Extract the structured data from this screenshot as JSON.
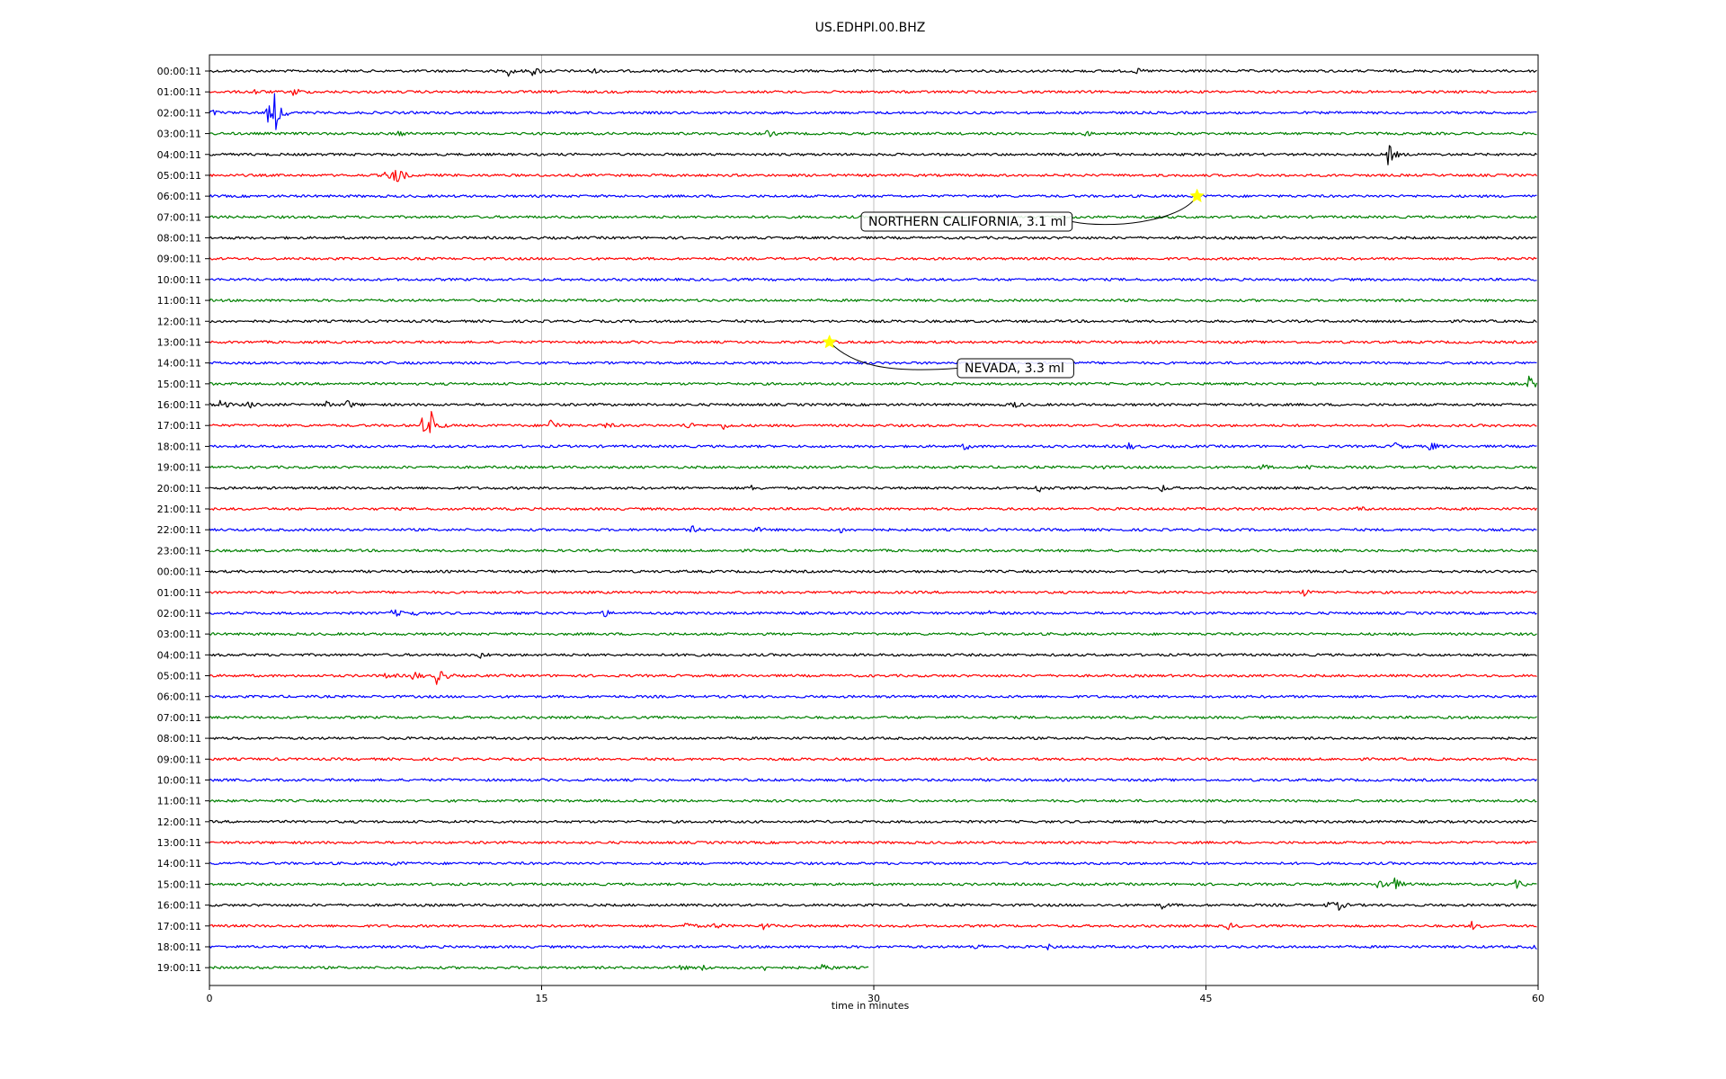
{
  "chart_data": {
    "type": "line",
    "title": "US.EDHPI.00.BHZ",
    "xlabel": "time in minutes",
    "xlim": [
      0,
      60
    ],
    "x_ticks": [
      0,
      15,
      30,
      45,
      60
    ],
    "grid": "vertical at major ticks",
    "line_colors": [
      "#000000",
      "#ff0000",
      "#0000ff",
      "#008000"
    ],
    "row_labels": [
      "00:00:11",
      "01:00:11",
      "02:00:11",
      "03:00:11",
      "04:00:11",
      "05:00:11",
      "06:00:11",
      "07:00:11",
      "08:00:11",
      "09:00:11",
      "10:00:11",
      "11:00:11",
      "12:00:11",
      "13:00:11",
      "14:00:11",
      "15:00:11",
      "16:00:11",
      "17:00:11",
      "18:00:11",
      "19:00:11",
      "20:00:11",
      "21:00:11",
      "22:00:11",
      "23:00:11",
      "00:00:11",
      "01:00:11",
      "02:00:11",
      "03:00:11",
      "04:00:11",
      "05:00:11",
      "06:00:11",
      "07:00:11",
      "08:00:11",
      "09:00:11",
      "10:00:11",
      "11:00:11",
      "12:00:11",
      "13:00:11",
      "14:00:11",
      "15:00:11",
      "16:00:11",
      "17:00:11",
      "18:00:11",
      "19:00:11"
    ],
    "last_row_end_minute": 29.8,
    "bursts": [
      {
        "row": 0,
        "t": 13.5,
        "amp": 0.45
      },
      {
        "row": 0,
        "t": 14.6,
        "amp": 0.5
      },
      {
        "row": 0,
        "t": 17.2,
        "amp": 0.35
      },
      {
        "row": 0,
        "t": 41.8,
        "amp": 0.3
      },
      {
        "row": 1,
        "t": 2.0,
        "amp": 0.3
      },
      {
        "row": 1,
        "t": 3.8,
        "amp": 0.5
      },
      {
        "row": 2,
        "t": 0.1,
        "amp": 0.3
      },
      {
        "row": 2,
        "t": 2.6,
        "amp": 1.2
      },
      {
        "row": 2,
        "t": 2.95,
        "amp": 2.3
      },
      {
        "row": 3,
        "t": 8.5,
        "amp": 0.3
      },
      {
        "row": 3,
        "t": 25.2,
        "amp": 0.35
      },
      {
        "row": 3,
        "t": 39.6,
        "amp": 0.25
      },
      {
        "row": 4,
        "t": 53.2,
        "amp": 1.4
      },
      {
        "row": 5,
        "t": 8.0,
        "amp": 0.7
      },
      {
        "row": 5,
        "t": 8.4,
        "amp": 1.6
      },
      {
        "row": 15,
        "t": 59.6,
        "amp": 1.0
      },
      {
        "row": 16,
        "t": 0.5,
        "amp": 0.55
      },
      {
        "row": 16,
        "t": 1.8,
        "amp": 0.45
      },
      {
        "row": 16,
        "t": 5.2,
        "amp": 0.4
      },
      {
        "row": 16,
        "t": 6.2,
        "amp": 0.5
      },
      {
        "row": 16,
        "t": 36.2,
        "amp": 0.5
      },
      {
        "row": 16,
        "t": 47.0,
        "amp": 0.45
      },
      {
        "row": 17,
        "t": 9.6,
        "amp": 0.8
      },
      {
        "row": 17,
        "t": 10.0,
        "amp": 1.6
      },
      {
        "row": 17,
        "t": 15.4,
        "amp": 0.8
      },
      {
        "row": 17,
        "t": 17.8,
        "amp": 0.4
      },
      {
        "row": 17,
        "t": 21.5,
        "amp": 0.45
      },
      {
        "row": 17,
        "t": 23.2,
        "amp": 0.35
      },
      {
        "row": 18,
        "t": 34.1,
        "amp": 0.35
      },
      {
        "row": 18,
        "t": 41.5,
        "amp": 0.35
      },
      {
        "row": 18,
        "t": 53.5,
        "amp": 0.5
      },
      {
        "row": 18,
        "t": 55.1,
        "amp": 0.6
      },
      {
        "row": 19,
        "t": 40.0,
        "amp": 0.35
      },
      {
        "row": 19,
        "t": 47.5,
        "amp": 0.3
      },
      {
        "row": 19,
        "t": 49.6,
        "amp": 0.35
      },
      {
        "row": 20,
        "t": 24.4,
        "amp": 0.3
      },
      {
        "row": 20,
        "t": 37.4,
        "amp": 0.5
      },
      {
        "row": 20,
        "t": 43.0,
        "amp": 0.35
      },
      {
        "row": 21,
        "t": 51.9,
        "amp": 0.3
      },
      {
        "row": 22,
        "t": 21.8,
        "amp": 0.35
      },
      {
        "row": 22,
        "t": 24.6,
        "amp": 0.35
      },
      {
        "row": 22,
        "t": 28.5,
        "amp": 0.3
      },
      {
        "row": 25,
        "t": 49.4,
        "amp": 0.4
      },
      {
        "row": 26,
        "t": 8.3,
        "amp": 0.55
      },
      {
        "row": 26,
        "t": 9.0,
        "amp": 0.5
      },
      {
        "row": 26,
        "t": 17.8,
        "amp": 0.4
      },
      {
        "row": 26,
        "t": 35.2,
        "amp": 0.3
      },
      {
        "row": 28,
        "t": 12.2,
        "amp": 0.3
      },
      {
        "row": 28,
        "t": 21.5,
        "amp": 0.3
      },
      {
        "row": 29,
        "t": 8.0,
        "amp": 0.4
      },
      {
        "row": 29,
        "t": 9.2,
        "amp": 0.6
      },
      {
        "row": 29,
        "t": 10.3,
        "amp": 1.3
      },
      {
        "row": 38,
        "t": 8.3,
        "amp": 0.3
      },
      {
        "row": 39,
        "t": 52.8,
        "amp": 1.0
      },
      {
        "row": 39,
        "t": 53.5,
        "amp": 0.7
      },
      {
        "row": 39,
        "t": 59.0,
        "amp": 0.45
      },
      {
        "row": 40,
        "t": 43.0,
        "amp": 0.35
      },
      {
        "row": 40,
        "t": 50.5,
        "amp": 0.5
      },
      {
        "row": 40,
        "t": 51.0,
        "amp": 0.45
      },
      {
        "row": 41,
        "t": 21.5,
        "amp": 0.4
      },
      {
        "row": 41,
        "t": 22.8,
        "amp": 0.35
      },
      {
        "row": 41,
        "t": 25.0,
        "amp": 0.4
      },
      {
        "row": 41,
        "t": 46.0,
        "amp": 0.35
      },
      {
        "row": 41,
        "t": 57.0,
        "amp": 0.4
      },
      {
        "row": 42,
        "t": 34.6,
        "amp": 0.35
      },
      {
        "row": 42,
        "t": 37.8,
        "amp": 0.3
      },
      {
        "row": 42,
        "t": 59.8,
        "amp": 0.35
      },
      {
        "row": 43,
        "t": 21.2,
        "amp": 0.3
      },
      {
        "row": 43,
        "t": 22.2,
        "amp": 0.3
      },
      {
        "row": 43,
        "t": 25.0,
        "amp": 0.3
      },
      {
        "row": 43,
        "t": 27.7,
        "amp": 0.5
      }
    ],
    "events": [
      {
        "label": "NORTHERN CALIFORNIA, 3.1 ml",
        "row": 6,
        "t": 44.6,
        "marker_color": "#ffff00"
      },
      {
        "label": "NEVADA, 3.3 ml",
        "row": 13,
        "t": 28.0,
        "marker_color": "#ffff00"
      }
    ]
  }
}
